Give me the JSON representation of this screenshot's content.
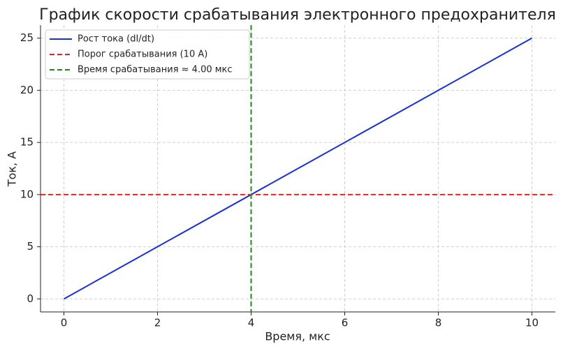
{
  "chart_data": {
    "type": "line",
    "title": "График скорости срабатывания электронного предохранителя",
    "xlabel": "Время, мкс",
    "ylabel": "Ток, А",
    "x": [
      0,
      10
    ],
    "series": [
      {
        "name": "Рост тока (dI/dt)",
        "color": "#1a2fd6",
        "values": [
          0,
          25
        ]
      }
    ],
    "hlines": [
      {
        "name": "Порог срабатывания (10 A)",
        "color": "#e02424",
        "value": 10
      }
    ],
    "vlines": [
      {
        "name": "Время срабатывания ≈ 4.00 мкс",
        "color": "#1e8a1e",
        "value": 4
      }
    ],
    "xlim": [
      -0.5,
      10.5
    ],
    "ylim": [
      -1.25,
      26.25
    ],
    "xticks": [
      0,
      2,
      4,
      6,
      8,
      10
    ],
    "yticks": [
      0,
      5,
      10,
      15,
      20,
      25
    ],
    "grid": true,
    "legend": "upper left"
  }
}
